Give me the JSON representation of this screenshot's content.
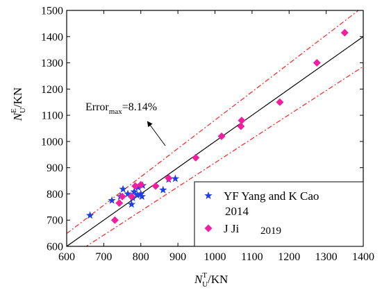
{
  "chart_data": {
    "type": "scatter",
    "title": "",
    "xlabel": {
      "base": "N",
      "sup": "T",
      "sub": "U",
      "unit": "/KN"
    },
    "ylabel": {
      "base": "N",
      "sup": "E",
      "sub": "U",
      "unit": "/KN"
    },
    "xlim": [
      600,
      1400
    ],
    "ylim": [
      600,
      1500
    ],
    "xticks": [
      600,
      700,
      800,
      900,
      1000,
      1100,
      1200,
      1300,
      1400
    ],
    "yticks": [
      600,
      700,
      800,
      900,
      1000,
      1100,
      1200,
      1300,
      1400,
      1500
    ],
    "grid": false,
    "legend_position": "bottom-right",
    "reference_line": {
      "slope": 1,
      "color": "#000000",
      "style": "solid"
    },
    "error_bounds": {
      "error_max": 0.0814,
      "color": "#ff2222",
      "style": "dash-dot"
    },
    "annotation": {
      "base": "Error",
      "sub": "max",
      "value": "=8.14%"
    },
    "series": [
      {
        "name": "YF Yang and K Cao 2014",
        "legend_lines": [
          "YF Yang and K Cao",
          "2014"
        ],
        "marker": "star",
        "color": "#1f3fe0",
        "points": [
          [
            663,
            718
          ],
          [
            722,
            775
          ],
          [
            745,
            790
          ],
          [
            752,
            818
          ],
          [
            765,
            800
          ],
          [
            775,
            760
          ],
          [
            778,
            785
          ],
          [
            782,
            808
          ],
          [
            790,
            795
          ],
          [
            793,
            825
          ],
          [
            800,
            800
          ],
          [
            803,
            790
          ],
          [
            805,
            832
          ],
          [
            860,
            815
          ],
          [
            875,
            855
          ],
          [
            893,
            858
          ]
        ]
      },
      {
        "name": "J Ji 2019",
        "legend_lines": [
          "J Ji",
          "2019"
        ],
        "marker": "diamond",
        "color": "#f01fa0",
        "points": [
          [
            730,
            700
          ],
          [
            742,
            765
          ],
          [
            750,
            790
          ],
          [
            775,
            790
          ],
          [
            785,
            830
          ],
          [
            800,
            835
          ],
          [
            840,
            830
          ],
          [
            875,
            860
          ],
          [
            948,
            938
          ],
          [
            1018,
            1020
          ],
          [
            1070,
            1058
          ],
          [
            1072,
            1080
          ],
          [
            1175,
            1150
          ],
          [
            1275,
            1300
          ],
          [
            1350,
            1415
          ]
        ]
      }
    ]
  }
}
